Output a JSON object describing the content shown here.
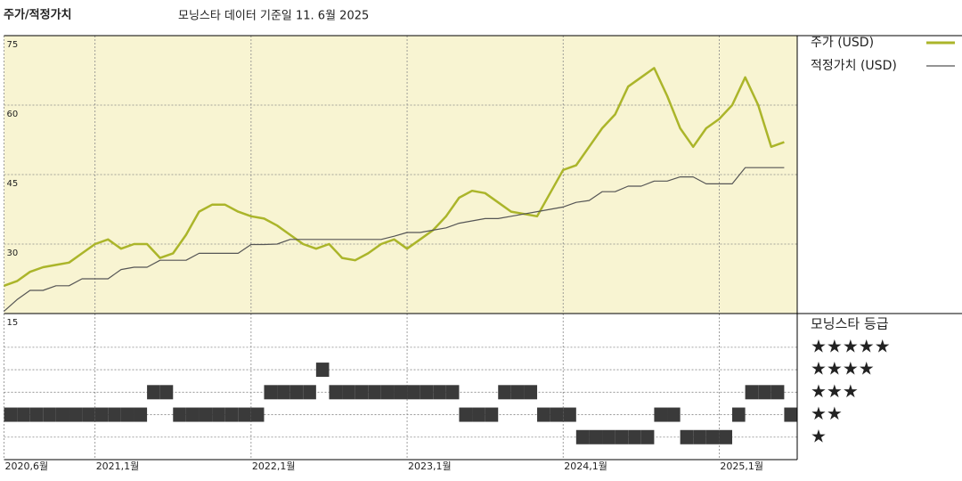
{
  "chart_data": [
    {
      "type": "line",
      "title": "주가/적정가치",
      "subtitle": "모닝스타 데이터 기준일 11. 6월 2025",
      "x": [
        "2020-06",
        "2020-07",
        "2020-08",
        "2020-09",
        "2020-10",
        "2020-11",
        "2020-12",
        "2021-01",
        "2021-02",
        "2021-03",
        "2021-04",
        "2021-05",
        "2021-06",
        "2021-07",
        "2021-08",
        "2021-09",
        "2021-10",
        "2021-11",
        "2021-12",
        "2022-01",
        "2022-02",
        "2022-03",
        "2022-04",
        "2022-05",
        "2022-06",
        "2022-07",
        "2022-08",
        "2022-09",
        "2022-10",
        "2022-11",
        "2022-12",
        "2023-01",
        "2023-02",
        "2023-03",
        "2023-04",
        "2023-05",
        "2023-06",
        "2023-07",
        "2023-08",
        "2023-09",
        "2023-10",
        "2023-11",
        "2023-12",
        "2024-01",
        "2024-02",
        "2024-03",
        "2024-04",
        "2024-05",
        "2024-06",
        "2024-07",
        "2024-08",
        "2024-09",
        "2024-10",
        "2024-11",
        "2024-12",
        "2025-01",
        "2025-02",
        "2025-03",
        "2025-04",
        "2025-05",
        "2025-06"
      ],
      "series": [
        {
          "name": "주가 (USD)",
          "color": "#abb52a",
          "values": [
            21,
            22,
            24,
            25,
            25.5,
            26,
            28,
            30,
            31,
            29,
            30,
            30,
            27,
            28,
            32,
            37,
            38.5,
            38.5,
            37,
            36,
            35.5,
            34,
            32,
            30,
            29,
            30,
            27,
            26.5,
            28,
            30,
            31,
            29,
            31,
            33,
            36,
            40,
            41.5,
            41,
            39,
            37,
            36.5,
            36,
            41,
            46,
            47,
            51,
            55,
            58,
            64,
            66,
            68,
            62,
            55,
            51,
            55,
            57,
            60,
            66,
            60,
            51,
            52
          ]
        },
        {
          "name": "적정가치 (USD)",
          "color": "#555555",
          "values": [
            15.5,
            18,
            20,
            20,
            21,
            21,
            22.5,
            22.5,
            22.5,
            24.5,
            25,
            25,
            26.5,
            26.5,
            26.5,
            28,
            28,
            28,
            28,
            29.9,
            29.9,
            30,
            31,
            31,
            31,
            31,
            31,
            31,
            31,
            31,
            31.7,
            32.5,
            32.5,
            33,
            33.5,
            34.5,
            35,
            35.5,
            35.5,
            36,
            36.5,
            37,
            37.5,
            38,
            39,
            39.4,
            41.3,
            41.3,
            42.5,
            42.5,
            43.6,
            43.6,
            44.5,
            44.5,
            43,
            43,
            43,
            46.5,
            46.5,
            46.5,
            46.5
          ]
        }
      ],
      "xlim": [
        "2020-06",
        "2025-07"
      ],
      "xticks": [
        {
          "value": "2020-06",
          "label": "2020,6월"
        },
        {
          "value": "2021-01",
          "label": "2021,1월"
        },
        {
          "value": "2022-01",
          "label": "2022,1월"
        },
        {
          "value": "2023-01",
          "label": "2023,1월"
        },
        {
          "value": "2024-01",
          "label": "2024,1월"
        },
        {
          "value": "2025-01",
          "label": "2025,1월"
        }
      ],
      "ylim": [
        15,
        75
      ],
      "yticks": [
        15,
        30,
        45,
        60,
        75
      ],
      "grid": true,
      "background": "#f8f4d2"
    },
    {
      "type": "rating",
      "title": "모닝스타 등급",
      "color": "#3a3a3a",
      "values": [
        2,
        2,
        2,
        2,
        2,
        2,
        2,
        2,
        2,
        2,
        2,
        3,
        3,
        2,
        2,
        2,
        2,
        2,
        2,
        2,
        3,
        3,
        3,
        3,
        4,
        3,
        3,
        3,
        3,
        3,
        3,
        3,
        3,
        3,
        3,
        2,
        2,
        2,
        3,
        3,
        3,
        2,
        2,
        2,
        1,
        1,
        1,
        1,
        1,
        1,
        2,
        2,
        1,
        1,
        1,
        1,
        2,
        3,
        3,
        3,
        2
      ],
      "ylim": [
        0,
        6.5
      ],
      "yticks": [
        {
          "value": 5,
          "label": "★★★★★"
        },
        {
          "value": 4,
          "label": "★★★★"
        },
        {
          "value": 3,
          "label": "★★★"
        },
        {
          "value": 2,
          "label": "★★"
        },
        {
          "value": 1,
          "label": "★"
        }
      ]
    }
  ]
}
